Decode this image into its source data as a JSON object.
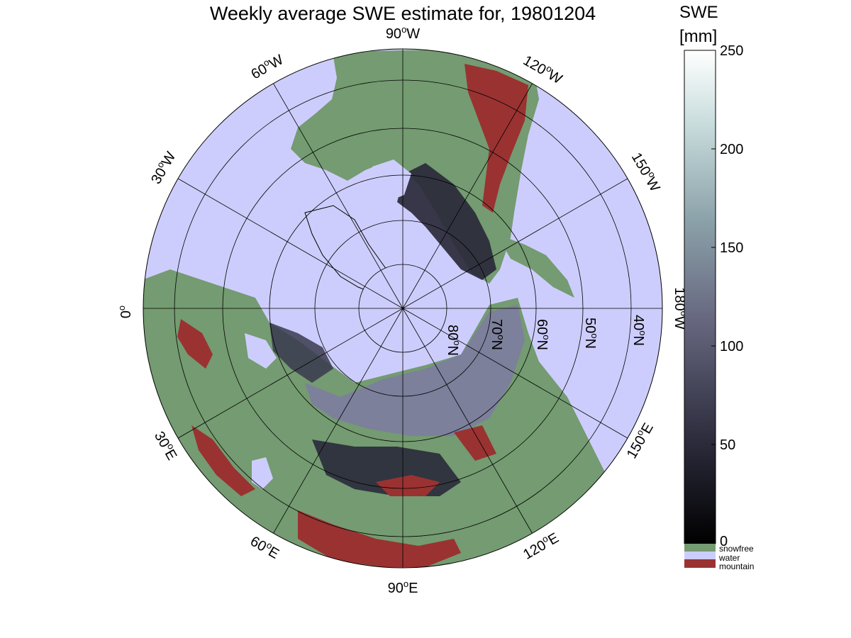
{
  "title": "Weekly average SWE estimate for, 19801204",
  "map": {
    "projection": "north-polar-stereographic",
    "water_color": "#cdcdfd",
    "snowfree_color": "#749b71",
    "mountain_color": "#9a3232",
    "snow_deep_color": "#7d7da0",
    "snow_shallow_color": "#2a2a3a",
    "longitude_labels": [
      {
        "text": "90",
        "suffix": "W"
      },
      {
        "text": "120",
        "suffix": "W"
      },
      {
        "text": "150",
        "suffix": "W"
      },
      {
        "text": "180",
        "suffix": "W"
      },
      {
        "text": "150",
        "suffix": "E"
      },
      {
        "text": "120",
        "suffix": "E"
      },
      {
        "text": "90",
        "suffix": "E"
      },
      {
        "text": "60",
        "suffix": "E"
      },
      {
        "text": "30",
        "suffix": "E"
      },
      {
        "text": "0",
        "suffix": ""
      },
      {
        "text": "30",
        "suffix": "W"
      },
      {
        "text": "60",
        "suffix": "W"
      }
    ],
    "latitude_labels": [
      {
        "text": "80",
        "suffix": "N"
      },
      {
        "text": "70",
        "suffix": "N"
      },
      {
        "text": "60",
        "suffix": "N"
      },
      {
        "text": "50",
        "suffix": "N"
      },
      {
        "text": "40",
        "suffix": "N"
      }
    ]
  },
  "colorbar": {
    "title": "SWE",
    "units": "[mm]",
    "ticks": [
      "250",
      "200",
      "150",
      "100",
      "50",
      "0"
    ],
    "range": [
      0,
      250
    ],
    "categories": [
      {
        "label": "snowfree",
        "color": "#749b71"
      },
      {
        "label": "water",
        "color": "#cdcdfd"
      },
      {
        "label": "mountain",
        "color": "#9a3232"
      }
    ]
  }
}
